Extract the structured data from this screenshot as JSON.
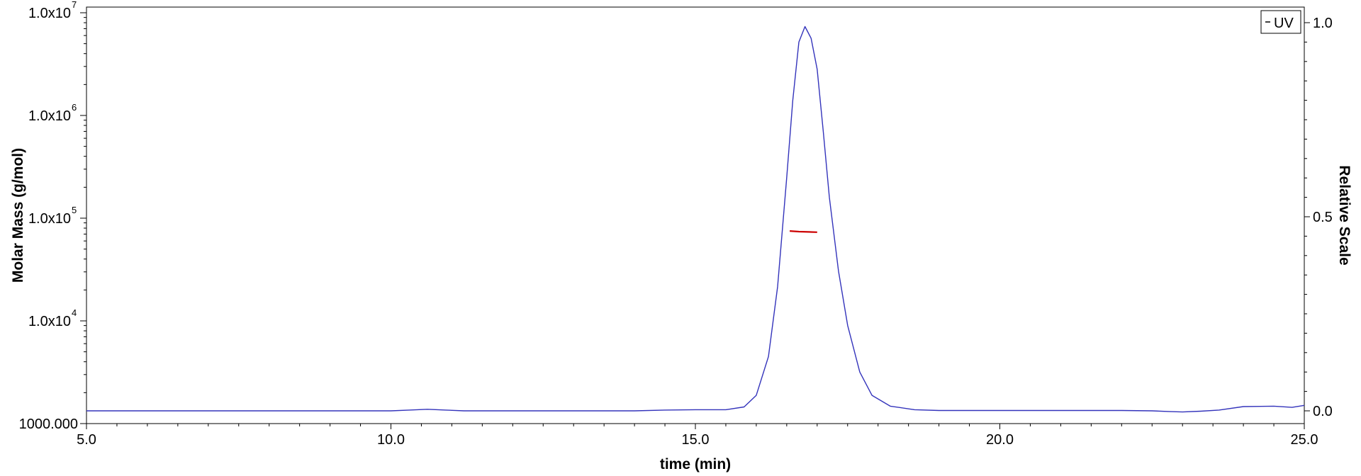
{
  "chart_data": {
    "type": "line",
    "xlabel": "time (min)",
    "ylabel_left": "Molar Mass (g/mol)",
    "ylabel_right": "Relative Scale",
    "xlim": [
      5.0,
      25.0
    ],
    "ylim_left": [
      1000,
      10000000
    ],
    "yscale_left": "log",
    "ylim_right": [
      0.0,
      1.0
    ],
    "x_ticks": [
      "5.0",
      "10.0",
      "15.0",
      "20.0",
      "25.0"
    ],
    "x_tick_values": [
      5,
      10,
      15,
      20,
      25
    ],
    "y_left_ticks": [
      {
        "value": 1000,
        "base": "1000.000",
        "exp": ""
      },
      {
        "value": 10000,
        "base": "1.0x10",
        "exp": "4"
      },
      {
        "value": 100000,
        "base": "1.0x10",
        "exp": "5"
      },
      {
        "value": 1000000,
        "base": "1.0x10",
        "exp": "6"
      },
      {
        "value": 10000000,
        "base": "1.0x10",
        "exp": "7"
      }
    ],
    "y_right_ticks": [
      "0.0",
      "0.5",
      "1.0"
    ],
    "y_right_tick_values": [
      0.0,
      0.5,
      1.0
    ],
    "legend": {
      "entries": [
        "UV"
      ],
      "position": "top-right"
    },
    "series": [
      {
        "name": "UV",
        "axis": "right",
        "color": "#3333bb",
        "x": [
          5.0,
          6.0,
          7.0,
          8.0,
          9.0,
          10.0,
          10.3,
          10.6,
          10.9,
          11.2,
          12.0,
          13.0,
          14.0,
          14.5,
          15.0,
          15.5,
          15.8,
          16.0,
          16.2,
          16.35,
          16.5,
          16.6,
          16.7,
          16.8,
          16.9,
          17.0,
          17.1,
          17.2,
          17.35,
          17.5,
          17.7,
          17.9,
          18.2,
          18.6,
          19.0,
          20.0,
          21.0,
          22.0,
          22.5,
          22.8,
          23.0,
          23.3,
          23.6,
          24.0,
          24.5,
          24.8,
          25.0
        ],
        "y": [
          0.0,
          0.0,
          0.0,
          0.0,
          0.0,
          0.0,
          0.002,
          0.004,
          0.002,
          0.0,
          0.0,
          0.0,
          0.0,
          0.002,
          0.003,
          0.003,
          0.01,
          0.04,
          0.14,
          0.32,
          0.6,
          0.8,
          0.95,
          0.99,
          0.96,
          0.88,
          0.72,
          0.55,
          0.36,
          0.22,
          0.1,
          0.04,
          0.012,
          0.003,
          0.001,
          0.001,
          0.001,
          0.001,
          0.0,
          -0.002,
          -0.003,
          -0.001,
          0.002,
          0.011,
          0.012,
          0.009,
          0.014
        ]
      },
      {
        "name": "Molar Mass",
        "axis": "left",
        "color": "#cc0000",
        "x": [
          16.55,
          16.7,
          16.85,
          17.0
        ],
        "y": [
          75000,
          74000,
          73500,
          73000
        ]
      }
    ]
  }
}
